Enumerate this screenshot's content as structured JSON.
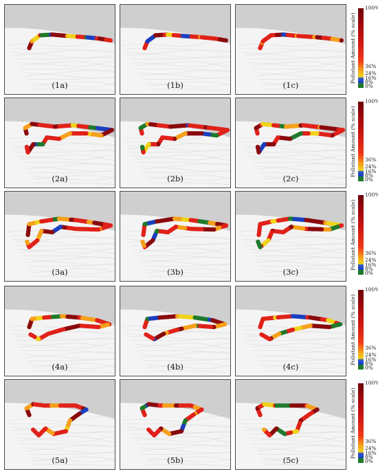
{
  "panels": [
    {
      "label": "(1a)"
    },
    {
      "label": "(1b)"
    },
    {
      "label": "(1c)"
    },
    {
      "label": "(2a)"
    },
    {
      "label": "(2b)"
    },
    {
      "label": "(2c)"
    },
    {
      "label": "(3a)"
    },
    {
      "label": "(3b)"
    },
    {
      "label": "(3c)"
    },
    {
      "label": "(4a)"
    },
    {
      "label": "(4b)"
    },
    {
      "label": "(4c)"
    },
    {
      "label": "(5a)"
    },
    {
      "label": "(5b)"
    },
    {
      "label": "(5c)"
    }
  ],
  "colorbar": {
    "title": "Pollutant Amount (% scale)",
    "ticks": [
      "100%",
      "36%",
      "24%",
      "16%",
      "8%",
      "0%"
    ],
    "colors": {
      "green": "#1e7a2c",
      "blue": "#1b3fc0",
      "yellow": "#f0d21a",
      "orange": "#f6a01a",
      "red": "#e0221a",
      "dark_red": "#8a0a0d"
    }
  },
  "map_colors": {
    "land": "#f4f4f4",
    "water": "#cfcfcf",
    "roads": "#dcdcdc",
    "border": "#4a4a4a"
  }
}
